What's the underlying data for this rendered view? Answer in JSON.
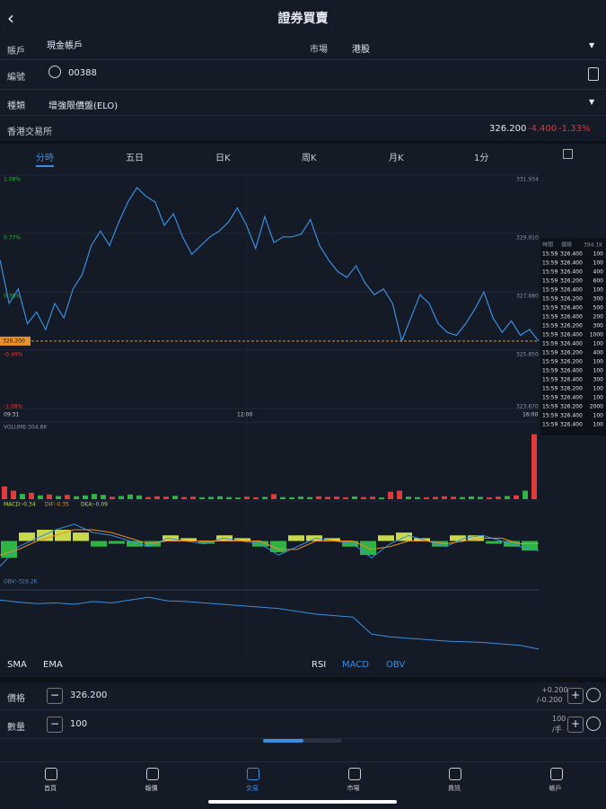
{
  "header": {
    "title": "證券買賣"
  },
  "form": {
    "account_label": "賬戶",
    "account": "現金帳戶",
    "market_label": "市場",
    "market": "港股",
    "code_label": "編號",
    "code": "00388",
    "type_label": "種類",
    "type": "增強限價盤(ELO)"
  },
  "quote": {
    "exchange": "香港交易所",
    "price": "326.200",
    "change": "-4.400",
    "change_pct": "-1.33%"
  },
  "tabs": [
    "分時",
    "五日",
    "日K",
    "周K",
    "月K",
    "1分"
  ],
  "intraday": {
    "left_labels": [
      "1.08%",
      "0.77%",
      "0.38%",
      "-0.46%",
      "-1.08%"
    ],
    "right_labels": [
      "331.934",
      "329.910",
      "327.880",
      "325.850",
      "323.870"
    ],
    "times": [
      "09:31",
      "12:00",
      "16:00"
    ],
    "last_price_tag": "326.200",
    "price": {
      "ylim": [
        323.87,
        331.934
      ],
      "color": "#3b8ee0",
      "last": 326.2,
      "values": [
        329.0,
        327.5,
        328.0,
        326.8,
        327.2,
        326.6,
        327.5,
        327.0,
        328.0,
        328.5,
        329.5,
        330.0,
        329.5,
        330.3,
        331.0,
        331.5,
        331.2,
        331.0,
        330.2,
        330.6,
        329.8,
        329.2,
        329.5,
        329.8,
        330.0,
        330.3,
        330.8,
        330.2,
        329.4,
        330.5,
        329.6,
        329.8,
        329.8,
        329.9,
        330.4,
        329.5,
        329.0,
        328.6,
        328.4,
        328.8,
        328.2,
        327.8,
        328.0,
        327.5,
        326.2,
        327.0,
        327.8,
        327.5,
        326.8,
        326.5,
        326.4,
        326.8,
        327.3,
        327.9,
        327.0,
        326.5,
        326.9,
        326.4,
        326.6,
        326.2
      ]
    },
    "volume": {
      "label": "VOLUME:304.8K",
      "ylim": [
        0,
        320
      ],
      "up_color": "#2fb344",
      "down_color": "#e03b3b",
      "values": [
        60,
        40,
        25,
        30,
        18,
        22,
        15,
        20,
        14,
        18,
        25,
        20,
        12,
        15,
        22,
        18,
        10,
        14,
        12,
        16,
        10,
        12,
        9,
        11,
        14,
        10,
        8,
        12,
        9,
        11,
        24,
        10,
        9,
        12,
        10,
        14,
        11,
        12,
        9,
        13,
        10,
        12,
        8,
        35,
        40,
        12,
        10,
        9,
        11,
        14,
        12,
        10,
        13,
        11,
        9,
        12,
        15,
        18,
        40,
        304.8
      ]
    },
    "macd": {
      "labels": [
        "MACD:-0.34",
        "DIF:-0.35",
        "DEA:-0.09"
      ],
      "ylim": [
        -1.2,
        1.2
      ],
      "dif_color": "#3b8ee0",
      "dea_color": "#e8902a",
      "pos_color": "#c8d94a",
      "neg_color": "#2fb344",
      "dif": [
        -0.9,
        -0.2,
        0.1,
        0.4,
        0.6,
        0.3,
        0.2,
        0.0,
        -0.2,
        0.1,
        0.0,
        -0.1,
        0.1,
        0.0,
        -0.1,
        -0.5,
        -0.2,
        0.1,
        0.0,
        -0.1,
        -0.6,
        -0.1,
        0.2,
        0.0,
        -0.2,
        0.1,
        0.2,
        0.0,
        -0.2,
        -0.35
      ],
      "dea": [
        -0.5,
        -0.3,
        0.0,
        0.2,
        0.4,
        0.4,
        0.3,
        0.1,
        -0.1,
        0.0,
        0.0,
        0.0,
        0.0,
        0.0,
        0.0,
        -0.3,
        -0.3,
        0.0,
        0.0,
        0.0,
        -0.3,
        -0.2,
        0.0,
        0.0,
        -0.1,
        0.0,
        0.1,
        0.1,
        -0.1,
        -0.09
      ],
      "hist": [
        -0.6,
        0.3,
        0.4,
        0.4,
        0.3,
        -0.2,
        -0.1,
        -0.2,
        -0.2,
        0.2,
        0.1,
        -0.1,
        0.2,
        0.1,
        -0.2,
        -0.4,
        0.2,
        0.2,
        0.1,
        -0.2,
        -0.5,
        0.2,
        0.3,
        0.1,
        -0.2,
        0.2,
        0.2,
        -0.1,
        -0.2,
        -0.34
      ]
    },
    "obv": {
      "label": "OBV:-326.2K",
      "ylim": [
        -340,
        60
      ],
      "color": "#3b8ee0",
      "values": [
        20,
        5,
        -5,
        0,
        -10,
        10,
        0,
        20,
        40,
        15,
        10,
        0,
        -10,
        -20,
        -30,
        -40,
        -60,
        -80,
        -90,
        -100,
        -220,
        -240,
        -250,
        -260,
        -270,
        -275,
        -280,
        -290,
        -300,
        -326.2
      ]
    }
  },
  "trades": {
    "headers": [
      "時間",
      "價格",
      "394.1K"
    ],
    "rows": [
      [
        "15:59",
        "326.400",
        "100"
      ],
      [
        "15:59",
        "326.400",
        "100"
      ],
      [
        "15:59",
        "326.400",
        "400"
      ],
      [
        "15:59",
        "326.200",
        "600"
      ],
      [
        "15:59",
        "326.400",
        "100"
      ],
      [
        "15:59",
        "326.200",
        "300"
      ],
      [
        "15:59",
        "326.400",
        "500"
      ],
      [
        "15:59",
        "326.400",
        "200"
      ],
      [
        "15:59",
        "326.200",
        "300"
      ],
      [
        "15:59",
        "326.400",
        "1000"
      ],
      [
        "15:59",
        "326.400",
        "100"
      ],
      [
        "15:59",
        "326.200",
        "400"
      ],
      [
        "15:59",
        "326.200",
        "100"
      ],
      [
        "15:59",
        "326.400",
        "100"
      ],
      [
        "15:59",
        "326.400",
        "300"
      ],
      [
        "15:59",
        "326.200",
        "100"
      ],
      [
        "15:59",
        "326.400",
        "100"
      ],
      [
        "15:59",
        "326.200",
        "2000"
      ],
      [
        "15:59",
        "326.400",
        "100"
      ],
      [
        "15:59",
        "326.400",
        "100"
      ]
    ]
  },
  "indicators": {
    "left": [
      "SMA",
      "EMA"
    ],
    "right": [
      "RSI",
      "MACD",
      "OBV"
    ]
  },
  "order": {
    "price_label": "價格",
    "price": "326.200",
    "step_up": "+0.200",
    "step_down": "/-0.200",
    "qty_label": "數量",
    "qty": "100",
    "lot": "100",
    "lot_unit": "/手"
  },
  "nav": [
    "首頁",
    "報價",
    "交易",
    "市場",
    "資訊",
    "帳戶"
  ]
}
